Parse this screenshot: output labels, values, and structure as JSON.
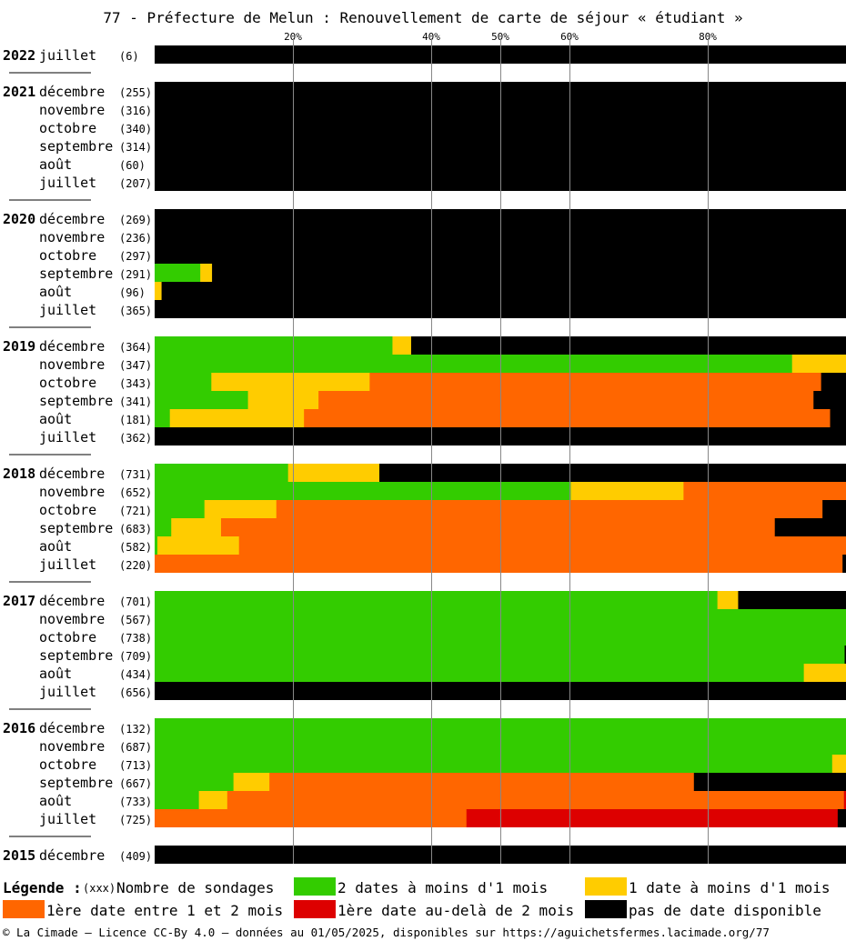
{
  "chart_data": {
    "type": "bar",
    "orientation": "horizontal",
    "stacked": true,
    "percent_scale": true,
    "title": "77 - Préfecture de Melun : Renouvellement de carte de séjour « étudiant »",
    "x_ticks": [
      "20%",
      "40%",
      "50%",
      "60%",
      "80%"
    ],
    "xlim": [
      0,
      100
    ],
    "grid": true,
    "series_order": [
      "green",
      "yellow",
      "orange",
      "red",
      "black"
    ],
    "colors": {
      "green": "#33cc00",
      "yellow": "#ffcc00",
      "orange": "#ff6600",
      "red": "#dd0000",
      "black": "#000000"
    },
    "groups": [
      {
        "year": "2022",
        "rows": [
          {
            "month": "juillet",
            "count": "(6)",
            "values": [
              0,
              0,
              0,
              0,
              100
            ]
          }
        ]
      },
      {
        "year": "2021",
        "rows": [
          {
            "month": "décembre",
            "count": "(255)",
            "values": [
              0,
              0,
              0,
              0,
              100
            ]
          },
          {
            "month": "novembre",
            "count": "(316)",
            "values": [
              0,
              0,
              0,
              0,
              100
            ]
          },
          {
            "month": "octobre",
            "count": "(340)",
            "values": [
              0,
              0,
              0,
              0,
              100
            ]
          },
          {
            "month": "septembre",
            "count": "(314)",
            "values": [
              0,
              0,
              0,
              0,
              100
            ]
          },
          {
            "month": "août",
            "count": "(60)",
            "values": [
              0,
              0,
              0,
              0,
              100
            ]
          },
          {
            "month": "juillet",
            "count": "(207)",
            "values": [
              0,
              0,
              0,
              0,
              100
            ]
          }
        ]
      },
      {
        "year": "2020",
        "rows": [
          {
            "month": "décembre",
            "count": "(269)",
            "values": [
              0,
              0,
              0,
              0,
              100
            ]
          },
          {
            "month": "novembre",
            "count": "(236)",
            "values": [
              0,
              0,
              0,
              0,
              100
            ]
          },
          {
            "month": "octobre",
            "count": "(297)",
            "values": [
              0,
              0,
              0,
              0,
              100
            ]
          },
          {
            "month": "septembre",
            "count": "(291)",
            "values": [
              6.6,
              1.7,
              0,
              0,
              91.7
            ]
          },
          {
            "month": "août",
            "count": "(96)",
            "values": [
              0,
              1.0,
              0,
              0,
              99.0
            ]
          },
          {
            "month": "juillet",
            "count": "(365)",
            "values": [
              0,
              0,
              0,
              0,
              100
            ]
          }
        ]
      },
      {
        "year": "2019",
        "rows": [
          {
            "month": "décembre",
            "count": "(364)",
            "values": [
              34.4,
              2.7,
              0,
              0,
              62.9
            ]
          },
          {
            "month": "novembre",
            "count": "(347)",
            "values": [
              92.2,
              7.8,
              0,
              0,
              0
            ]
          },
          {
            "month": "octobre",
            "count": "(343)",
            "values": [
              8.2,
              22.9,
              65.3,
              0,
              3.6
            ]
          },
          {
            "month": "septembre",
            "count": "(341)",
            "values": [
              13.5,
              10.2,
              71.6,
              0,
              4.7
            ]
          },
          {
            "month": "août",
            "count": "(181)",
            "values": [
              2.2,
              19.4,
              76.1,
              0,
              2.3
            ]
          },
          {
            "month": "juillet",
            "count": "(362)",
            "values": [
              0,
              0,
              0,
              0,
              100
            ]
          }
        ]
      },
      {
        "year": "2018",
        "rows": [
          {
            "month": "décembre",
            "count": "(731)",
            "values": [
              19.3,
              13.2,
              0,
              0,
              67.5
            ]
          },
          {
            "month": "novembre",
            "count": "(652)",
            "values": [
              60.2,
              16.3,
              23.5,
              0,
              0
            ]
          },
          {
            "month": "octobre",
            "count": "(721)",
            "values": [
              7.2,
              10.4,
              79.0,
              0,
              3.4
            ]
          },
          {
            "month": "septembre",
            "count": "(683)",
            "values": [
              2.4,
              7.2,
              80.1,
              0,
              10.3
            ]
          },
          {
            "month": "août",
            "count": "(582)",
            "values": [
              0.4,
              11.8,
              87.8,
              0,
              0
            ]
          },
          {
            "month": "juillet",
            "count": "(220)",
            "values": [
              0,
              0,
              99.5,
              0,
              0.5
            ]
          }
        ]
      },
      {
        "year": "2017",
        "rows": [
          {
            "month": "décembre",
            "count": "(701)",
            "values": [
              81.4,
              3.0,
              0,
              0,
              15.6
            ]
          },
          {
            "month": "novembre",
            "count": "(567)",
            "values": [
              100,
              0,
              0,
              0,
              0
            ]
          },
          {
            "month": "octobre",
            "count": "(738)",
            "values": [
              100,
              0,
              0,
              0,
              0
            ]
          },
          {
            "month": "septembre",
            "count": "(709)",
            "values": [
              99.8,
              0,
              0,
              0,
              0.2
            ]
          },
          {
            "month": "août",
            "count": "(434)",
            "values": [
              93.9,
              6.1,
              0,
              0,
              0
            ]
          },
          {
            "month": "juillet",
            "count": "(656)",
            "values": [
              0,
              0,
              0,
              0,
              100
            ]
          }
        ]
      },
      {
        "year": "2016",
        "rows": [
          {
            "month": "décembre",
            "count": "(132)",
            "values": [
              100,
              0,
              0,
              0,
              0
            ]
          },
          {
            "month": "novembre",
            "count": "(687)",
            "values": [
              100,
              0,
              0,
              0,
              0
            ]
          },
          {
            "month": "octobre",
            "count": "(713)",
            "values": [
              98.0,
              2.0,
              0,
              0,
              0
            ]
          },
          {
            "month": "septembre",
            "count": "(667)",
            "values": [
              11.4,
              5.2,
              61.4,
              0,
              22.0
            ]
          },
          {
            "month": "août",
            "count": "(733)",
            "values": [
              6.4,
              4.1,
              89.2,
              0.3,
              0
            ]
          },
          {
            "month": "juillet",
            "count": "(725)",
            "values": [
              0,
              0,
              45.1,
              53.7,
              1.2
            ]
          }
        ]
      },
      {
        "year": "2015",
        "rows": [
          {
            "month": "décembre",
            "count": "(409)",
            "values": [
              0,
              0,
              0,
              0,
              100
            ]
          }
        ]
      }
    ],
    "legend": {
      "title": "Légende :",
      "count_marker": "(xxx)",
      "count_text": "Nombre de sondages",
      "entries": [
        {
          "key": "green",
          "label": "2 dates à moins d'1 mois"
        },
        {
          "key": "yellow",
          "label": "1 date à moins d'1 mois"
        },
        {
          "key": "orange",
          "label": "1ère date entre 1 et 2 mois"
        },
        {
          "key": "red",
          "label": "1ère date au-delà de 2 mois"
        },
        {
          "key": "black",
          "label": "pas de date disponible"
        }
      ]
    },
    "footer": "© La Cimade — Licence CC-By 4.0 — données au 01/05/2025, disponibles sur https://aguichetsfermes.lacimade.org/77"
  }
}
